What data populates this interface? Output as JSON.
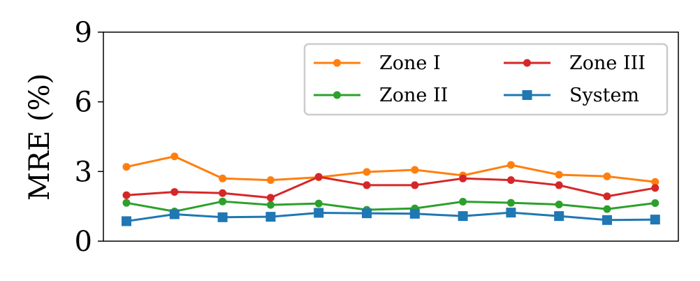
{
  "chart_data": {
    "type": "line",
    "title": "",
    "xlabel": "",
    "ylabel": "MRE (%)",
    "ylim": [
      0,
      9
    ],
    "yticks": [
      "0",
      "3",
      "6",
      "9"
    ],
    "x": [
      1,
      2,
      3,
      4,
      5,
      6,
      7,
      8,
      9,
      10,
      11,
      12
    ],
    "grid": false,
    "legend_position": "top-right",
    "series": [
      {
        "name": "Zone I",
        "color": "#ff7f0e",
        "marker": "circle",
        "values": [
          3.2,
          3.65,
          2.7,
          2.63,
          2.75,
          2.98,
          3.07,
          2.83,
          3.28,
          2.86,
          2.79,
          2.55
        ]
      },
      {
        "name": "Zone II",
        "color": "#2ca02c",
        "marker": "circle",
        "values": [
          1.65,
          1.28,
          1.71,
          1.56,
          1.62,
          1.35,
          1.41,
          1.7,
          1.65,
          1.58,
          1.38,
          1.64
        ]
      },
      {
        "name": "Zone III",
        "color": "#d62728",
        "marker": "circle",
        "values": [
          1.98,
          2.12,
          2.07,
          1.87,
          2.77,
          2.41,
          2.41,
          2.7,
          2.63,
          2.41,
          1.93,
          2.29
        ]
      },
      {
        "name": "System",
        "color": "#1f77b4",
        "marker": "square",
        "values": [
          0.86,
          1.16,
          1.03,
          1.05,
          1.22,
          1.2,
          1.18,
          1.08,
          1.23,
          1.08,
          0.91,
          0.93
        ]
      }
    ]
  }
}
